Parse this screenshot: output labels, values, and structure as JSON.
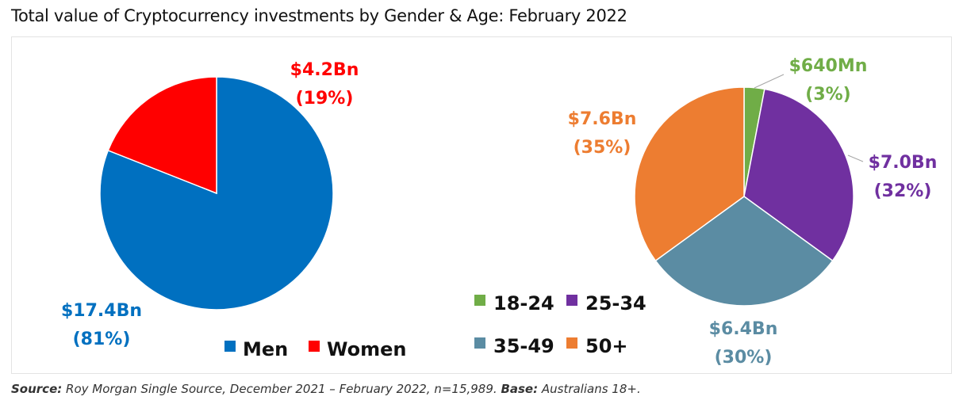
{
  "title": "Total value of Cryptocurrency investments by Gender & Age: February 2022",
  "source": {
    "label1": "Source:",
    "text1": " Roy Morgan Single Source, December 2021 – February 2022, n=15,989. ",
    "label2": "Base:",
    "text2": " Australians 18+."
  },
  "chart_data": [
    {
      "type": "pie",
      "slices": [
        {
          "name": "Men",
          "value": 17.4,
          "percent": 81,
          "value_label": "$17.4Bn",
          "percent_label": "(81%)",
          "color": "#0070c0"
        },
        {
          "name": "Women",
          "value": 4.2,
          "percent": 19,
          "value_label": "$4.2Bn",
          "percent_label": "(19%)",
          "color": "#ff0000"
        }
      ],
      "legend": [
        "Men",
        "Women"
      ],
      "legend_position": "bottom"
    },
    {
      "type": "pie",
      "slices": [
        {
          "name": "18-24",
          "value": 0.64,
          "percent": 3,
          "value_label": "$640Mn",
          "percent_label": "(3%)",
          "color": "#70ad47"
        },
        {
          "name": "25-34",
          "value": 7.0,
          "percent": 32,
          "value_label": "$7.0Bn",
          "percent_label": "(32%)",
          "color": "#7030a0"
        },
        {
          "name": "35-49",
          "value": 6.4,
          "percent": 30,
          "value_label": "$6.4Bn",
          "percent_label": "(30%)",
          "color": "#5b8ca3"
        },
        {
          "name": "50+",
          "value": 7.6,
          "percent": 35,
          "value_label": "$7.6Bn",
          "percent_label": "(35%)",
          "color": "#ed7d31"
        }
      ],
      "legend": [
        "18-24",
        "25-34",
        "35-49",
        "50+"
      ],
      "legend_position": "bottom-left"
    }
  ]
}
